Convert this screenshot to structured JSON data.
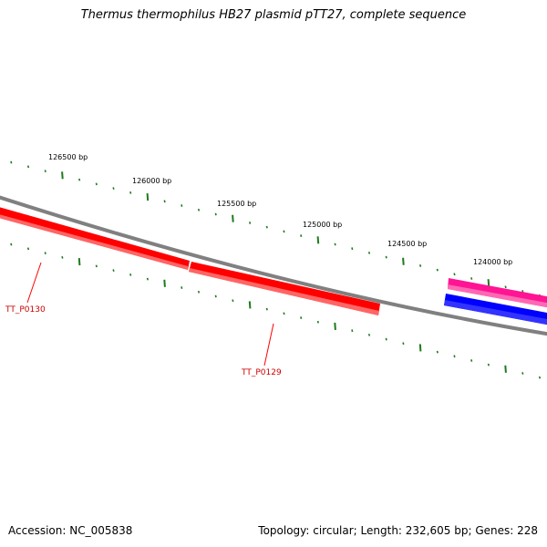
{
  "title": "Thermus thermophilus HB27 plasmid pTT27, complete sequence",
  "footer": {
    "accession": "Accession: NC_005838",
    "summary": "Topology: circular; Length: 232,605 bp; Genes: 228"
  },
  "colors": {
    "backbone": "#808080",
    "tick": "#1e7a1e",
    "gene_reverse": "#ff0000",
    "gene_label": "#cc0000",
    "gene_forward_pink": "#ff1493",
    "gene_blue": "#0000ff"
  },
  "scale_labels": [
    {
      "bp": 126500,
      "label": "126500 bp"
    },
    {
      "bp": 126000,
      "label": "126000 bp"
    },
    {
      "bp": 125500,
      "label": "125500 bp"
    },
    {
      "bp": 125000,
      "label": "125000 bp"
    },
    {
      "bp": 124500,
      "label": "124500 bp"
    },
    {
      "bp": 124000,
      "label": "124000 bp"
    }
  ],
  "genes": [
    {
      "name": "TT_P0130",
      "strand": "reverse"
    },
    {
      "name": "TT_P0129",
      "strand": "reverse"
    },
    {
      "name": "",
      "strand": "forward"
    },
    {
      "name": "",
      "strand": "reverse"
    }
  ]
}
